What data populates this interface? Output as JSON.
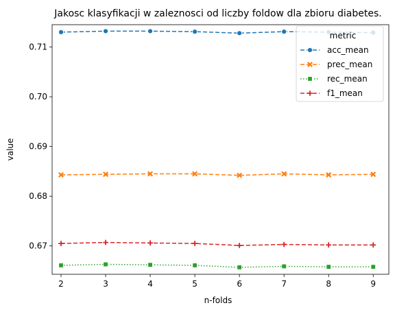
{
  "chart_data": {
    "type": "line",
    "title": "Jakosc klasyfikacji w zaleznosci od liczby foldow dla zbioru diabetes.",
    "xlabel": "n-folds",
    "ylabel": "value",
    "x": [
      2,
      3,
      4,
      5,
      6,
      7,
      8,
      9
    ],
    "xlim": [
      1.8,
      9.35
    ],
    "ylim": [
      0.6643,
      0.7145
    ],
    "xticks": [
      2,
      3,
      4,
      5,
      6,
      7,
      8,
      9
    ],
    "yticks": [
      0.67,
      0.68,
      0.69,
      0.7,
      0.71
    ],
    "ytick_labels": [
      "0.67",
      "0.68",
      "0.69",
      "0.70",
      "0.71"
    ],
    "grid": false,
    "legend": {
      "title": "metric",
      "placement": "upper right"
    },
    "series": [
      {
        "name": "acc_mean",
        "color": "#1f77b4",
        "marker": "circle",
        "values": [
          0.713,
          0.7132,
          0.7132,
          0.7131,
          0.7128,
          0.7131,
          0.713,
          0.7129
        ]
      },
      {
        "name": "prec_mean",
        "color": "#ff7f0e",
        "marker": "x",
        "values": [
          0.6843,
          0.6844,
          0.6845,
          0.6845,
          0.6842,
          0.6845,
          0.6843,
          0.6844
        ]
      },
      {
        "name": "rec_mean",
        "color": "#2ca02c",
        "marker": "square",
        "values": [
          0.6661,
          0.6663,
          0.6662,
          0.6661,
          0.6657,
          0.6659,
          0.6658,
          0.6658
        ]
      },
      {
        "name": "f1_mean",
        "color": "#d62728",
        "marker": "plus",
        "values": [
          0.6705,
          0.6707,
          0.6706,
          0.6705,
          0.6701,
          0.6703,
          0.6702,
          0.6702
        ]
      }
    ]
  }
}
